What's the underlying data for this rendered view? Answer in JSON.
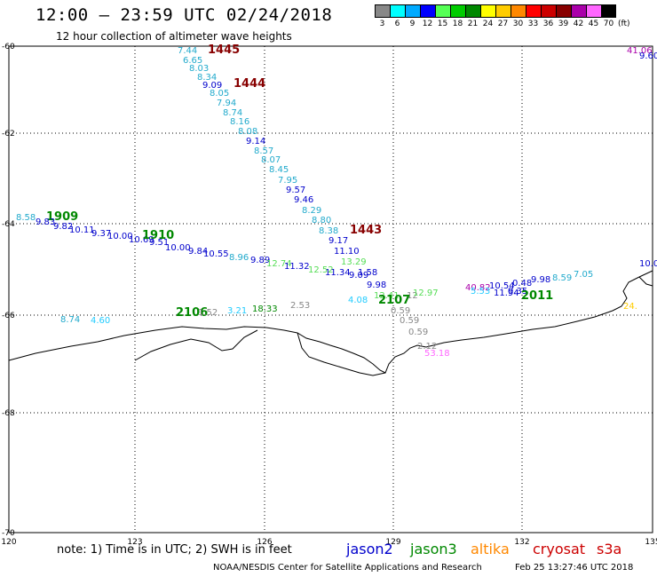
{
  "header": {
    "title": "12:00 – 23:59 UTC 02/24/2018",
    "subtitle": "12 hour collection of altimeter wave heights"
  },
  "scale": {
    "unit": "(ft)",
    "labels": [
      "3",
      "6",
      "9",
      "12",
      "15",
      "18",
      "21",
      "24",
      "27",
      "30",
      "33",
      "36",
      "39",
      "42",
      "45",
      "70"
    ],
    "colors": [
      "#888888",
      "#00ffff",
      "#00aaff",
      "#0000ff",
      "#55ff55",
      "#00cc00",
      "#008800",
      "#ffff00",
      "#ffcc00",
      "#ff8800",
      "#ff0000",
      "#cc0000",
      "#880000",
      "#aa00aa",
      "#ff66ff",
      "#000000"
    ]
  },
  "axes": {
    "x_ticks": [
      "120",
      "123",
      "126",
      "129",
      "132",
      "135"
    ],
    "y_ticks": [
      "-60",
      "-62",
      "-64",
      "-66",
      "-68",
      "-70"
    ]
  },
  "annotations": [
    {
      "text": "7.44",
      "color": "#22aacc"
    },
    {
      "text": "1445",
      "color": "#880000"
    },
    {
      "text": "6.65",
      "color": "#22aacc"
    },
    {
      "text": "8.03",
      "color": "#22aacc"
    },
    {
      "text": "8.34",
      "color": "#22aacc"
    },
    {
      "text": "9.09",
      "color": "#0000cc"
    },
    {
      "text": "1444",
      "color": "#880000"
    },
    {
      "text": "8.05",
      "color": "#22aacc"
    },
    {
      "text": "7.94",
      "color": "#22aacc"
    },
    {
      "text": "8.74",
      "color": "#22aacc"
    },
    {
      "text": "8.16",
      "color": "#22aacc"
    },
    {
      "text": "8.08",
      "color": "#22aacc"
    },
    {
      "text": "9.14",
      "color": "#0000cc"
    },
    {
      "text": "8.57",
      "color": "#22aacc"
    },
    {
      "text": "8.07",
      "color": "#22aacc"
    },
    {
      "text": "8.45",
      "color": "#22aacc"
    },
    {
      "text": "7.95",
      "color": "#22aacc"
    },
    {
      "text": "9.57",
      "color": "#0000cc"
    },
    {
      "text": "9.46",
      "color": "#0000cc"
    },
    {
      "text": "8.29",
      "color": "#22aacc"
    },
    {
      "text": "8.80",
      "color": "#22aacc"
    },
    {
      "text": "8.38",
      "color": "#22aacc"
    },
    {
      "text": "1443",
      "color": "#880000"
    },
    {
      "text": "9.17",
      "color": "#0000cc"
    },
    {
      "text": "11.10",
      "color": "#0000cc"
    },
    {
      "text": "13.29",
      "color": "#55dd55"
    },
    {
      "text": "11.34",
      "color": "#0000cc"
    },
    {
      "text": "1.58",
      "color": "#0000cc"
    },
    {
      "text": "9.09",
      "color": "#0000cc"
    },
    {
      "text": "9.98",
      "color": "#0000cc"
    },
    {
      "text": "8.58",
      "color": "#22aacc"
    },
    {
      "text": "1909",
      "color": "#008800"
    },
    {
      "text": "9.83",
      "color": "#0000cc"
    },
    {
      "text": "9.82",
      "color": "#0000cc"
    },
    {
      "text": "10.11",
      "color": "#0000cc"
    },
    {
      "text": "9.37",
      "color": "#0000cc"
    },
    {
      "text": "10.00",
      "color": "#0000cc"
    },
    {
      "text": "10.69",
      "color": "#0000cc"
    },
    {
      "text": "1910",
      "color": "#008800"
    },
    {
      "text": "9.51",
      "color": "#0000cc"
    },
    {
      "text": "10.00",
      "color": "#0000cc"
    },
    {
      "text": "9.84",
      "color": "#0000cc"
    },
    {
      "text": "10.55",
      "color": "#0000cc"
    },
    {
      "text": "8.96",
      "color": "#22aacc"
    },
    {
      "text": "9.89",
      "color": "#0000cc"
    },
    {
      "text": "12.74",
      "color": "#55dd55"
    },
    {
      "text": "11.32",
      "color": "#0000cc"
    },
    {
      "text": "12.52",
      "color": "#55dd55"
    },
    {
      "text": "4.08",
      "color": "#22ccff"
    },
    {
      "text": "12.41",
      "color": "#55dd55"
    },
    {
      "text": "12",
      "color": "#888888"
    },
    {
      "text": "12.97",
      "color": "#55dd55"
    },
    {
      "text": "2107",
      "color": "#008800"
    },
    {
      "text": "0.59",
      "color": "#888888"
    },
    {
      "text": "0.59",
      "color": "#888888"
    },
    {
      "text": "0.59",
      "color": "#888888"
    },
    {
      "text": "2.12",
      "color": "#888888"
    },
    {
      "text": "53.18",
      "color": "#ff66ff"
    },
    {
      "text": "40.82",
      "color": "#aa00aa"
    },
    {
      "text": "10.54",
      "color": "#0000cc"
    },
    {
      "text": "0.48",
      "color": "#0000cc"
    },
    {
      "text": "9.98",
      "color": "#0000cc"
    },
    {
      "text": "8.59",
      "color": "#22aacc"
    },
    {
      "text": "7.05",
      "color": "#22aacc"
    },
    {
      "text": "5.53",
      "color": "#22ccff"
    },
    {
      "text": "11.94",
      "color": "#0000cc"
    },
    {
      "text": "9.35",
      "color": "#0000cc"
    },
    {
      "text": "2011",
      "color": "#008800"
    },
    {
      "text": "8.74",
      "color": "#22aacc"
    },
    {
      "text": "4.60",
      "color": "#22ccff"
    },
    {
      "text": "2106",
      "color": "#008800"
    },
    {
      "text": "1.52",
      "color": "#888888"
    },
    {
      "text": "3.21",
      "color": "#22ccff"
    },
    {
      "text": "18.33",
      "color": "#008800"
    },
    {
      "text": "2.53",
      "color": "#888888"
    },
    {
      "text": "41.06",
      "color": "#aa00aa"
    },
    {
      "text": "9.60",
      "color": "#0000cc"
    },
    {
      "text": "10.0",
      "color": "#0000cc"
    },
    {
      "text": "24.",
      "color": "#ffcc00"
    },
    {
      "text": "14.95",
      "color": "#55dd55"
    }
  ],
  "footer": {
    "note": "note:  1) Time is in UTC;  2) SWH is in feet",
    "satellites": [
      {
        "name": "jason2",
        "color": "#0000cc"
      },
      {
        "name": "jason3",
        "color": "#008800"
      },
      {
        "name": "altika",
        "color": "#ff8800"
      },
      {
        "name": "cryosat",
        "color": "#cc0000"
      },
      {
        "name": "s3a",
        "color": "#cc0000"
      }
    ],
    "credit": "NOAA/NESDIS Center for Satellite Applications and Research",
    "timestamp": "Feb 25 13:27:46 UTC 2018"
  }
}
